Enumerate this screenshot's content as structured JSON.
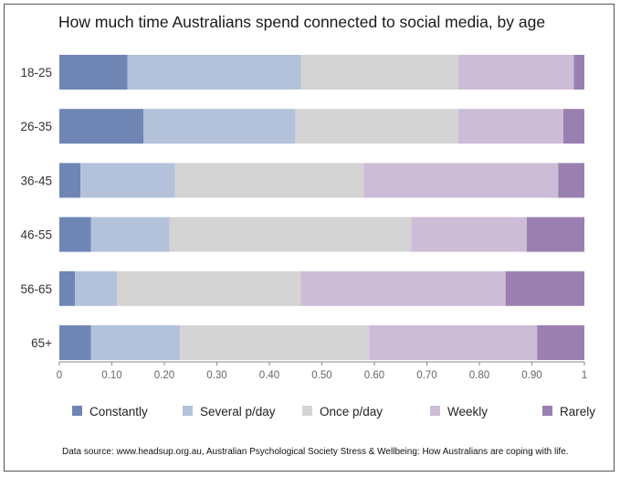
{
  "chart_data": {
    "type": "bar",
    "orientation": "horizontal",
    "stacked": true,
    "title": "How much time Australians spend connected to social media, by age",
    "categories": [
      "18-25",
      "26-35",
      "36-45",
      "46-55",
      "56-65",
      "65+"
    ],
    "series": [
      {
        "name": "Constantly",
        "color": "#6f86b4",
        "values": [
          0.13,
          0.16,
          0.04,
          0.06,
          0.03,
          0.06
        ]
      },
      {
        "name": "Several p/day",
        "color": "#b4c1da",
        "values": [
          0.33,
          0.29,
          0.18,
          0.15,
          0.08,
          0.17
        ]
      },
      {
        "name": "Once p/day",
        "color": "#d4d4d4",
        "values": [
          0.3,
          0.31,
          0.36,
          0.46,
          0.35,
          0.36
        ]
      },
      {
        "name": "Weekly",
        "color": "#cdbcd6",
        "values": [
          0.22,
          0.2,
          0.37,
          0.22,
          0.39,
          0.32
        ]
      },
      {
        "name": "Rarely",
        "color": "#9a80b0",
        "values": [
          0.02,
          0.04,
          0.05,
          0.11,
          0.15,
          0.09
        ]
      }
    ],
    "xlim": [
      0,
      1
    ],
    "xticks": [
      "0",
      "0.10",
      "0.20",
      "0.30",
      "0.40",
      "0.50",
      "0.60",
      "0.70",
      "0.80",
      "0.90",
      "1"
    ],
    "grid": false,
    "legend_position": "bottom",
    "source": "Data source: www.headsup.org.au, Australian Psychological Society Stress & Wellbeing: How Australians are coping with life."
  }
}
